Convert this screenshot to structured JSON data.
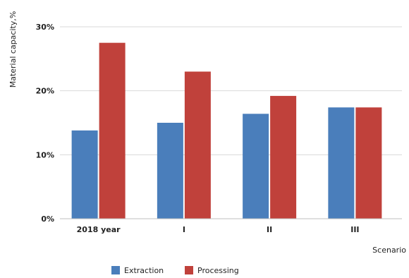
{
  "chart_data": {
    "type": "bar",
    "title": "",
    "xlabel": "Scenario",
    "ylabel": "Material capacity,%",
    "categories": [
      "2018 year",
      "I",
      "II",
      "III"
    ],
    "series": [
      {
        "name": "Extraction",
        "color": "#4a7ebb",
        "values": [
          13.8,
          15.0,
          16.4,
          17.4
        ]
      },
      {
        "name": "Processing",
        "color": "#c0413b",
        "values": [
          27.5,
          23.0,
          19.2,
          17.4
        ]
      }
    ],
    "ylim": [
      0,
      30
    ],
    "yticks": [
      0,
      10,
      20,
      30
    ],
    "ytick_labels": [
      "0%",
      "10%",
      "20%",
      "30%"
    ],
    "grid": true,
    "legend_position": "bottom"
  }
}
